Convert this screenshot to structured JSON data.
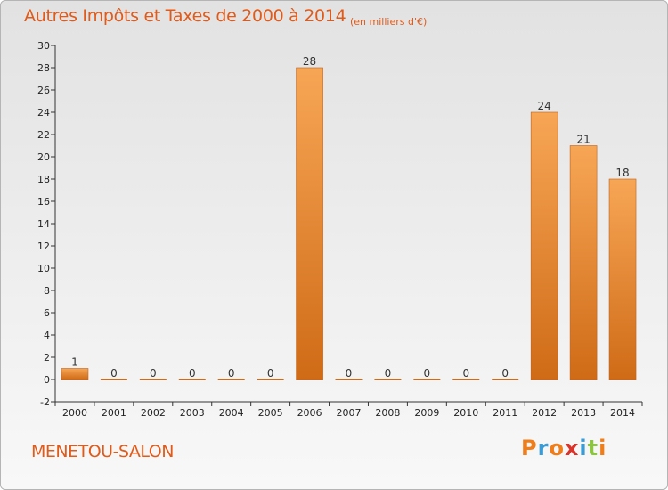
{
  "header": {
    "title": "Autres Impôts et Taxes de 2000 à 2014",
    "subtitle": "(en milliers d'€)"
  },
  "footer": {
    "commune": "MENETOU-SALON",
    "logo": {
      "text": "Proxiti",
      "letters": [
        "P",
        "r",
        "o",
        "x",
        "i",
        "t",
        "i"
      ],
      "colors": [
        "#ef7d1a",
        "#3a9bd5",
        "#ef7d1a",
        "#d9342b",
        "#3a9bd5",
        "#8cc63f",
        "#ef7d1a"
      ]
    }
  },
  "colors": {
    "bar_top": "#f7a655",
    "bar_bottom": "#cf6b17",
    "bar_edge": "#c0601a",
    "title": "#e05a1a",
    "grid": "#cccccc"
  },
  "chart_data": {
    "type": "bar",
    "title": "Autres Impôts et Taxes de 2000 à 2014",
    "subtitle": "(en milliers d'€)",
    "categories": [
      "2000",
      "2001",
      "2002",
      "2003",
      "2004",
      "2005",
      "2006",
      "2007",
      "2008",
      "2009",
      "2010",
      "2011",
      "2012",
      "2013",
      "2014"
    ],
    "values": [
      1,
      0,
      0,
      0,
      0,
      0,
      28,
      0,
      0,
      0,
      0,
      0,
      24,
      21,
      18
    ],
    "ylim": [
      -2,
      30
    ],
    "yticks": [
      -2,
      0,
      2,
      4,
      6,
      8,
      10,
      12,
      14,
      16,
      18,
      20,
      22,
      24,
      26,
      28,
      30
    ],
    "grid": false,
    "legend": "none"
  }
}
